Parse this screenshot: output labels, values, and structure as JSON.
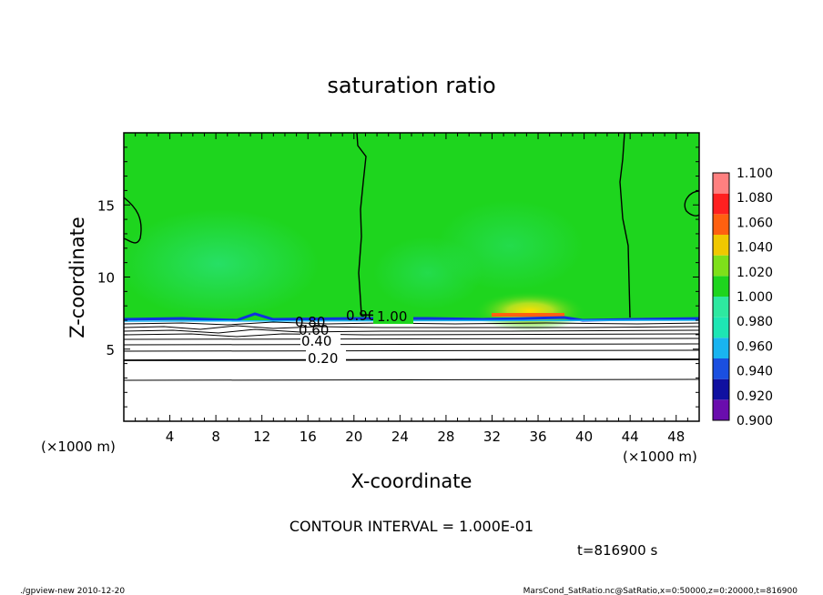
{
  "chart_data": {
    "type": "heatmap",
    "title": "saturation ratio",
    "xlabel": "X-coordinate",
    "ylabel": "Z-coordinate",
    "x_unit": "(×1000 m)",
    "z_unit": "(×1000 m)",
    "xlim": [
      0,
      50
    ],
    "ylim": [
      0,
      20
    ],
    "x_ticks": [
      4,
      8,
      12,
      16,
      20,
      24,
      28,
      32,
      36,
      40,
      44,
      48
    ],
    "y_ticks": [
      5,
      10,
      15
    ],
    "colorbar": {
      "levels": [
        "0.900",
        "0.920",
        "0.940",
        "0.960",
        "0.980",
        "1.000",
        "1.020",
        "1.040",
        "1.060",
        "1.080",
        "1.100"
      ],
      "colors": [
        "#6a0dad",
        "#1010a0",
        "#1a4fe0",
        "#19b4f0",
        "#1ee6b4",
        "#2ee8a0",
        "#1ed51e",
        "#7ee01a",
        "#f0c800",
        "#ff6010",
        "#ff2020",
        "#ff8080"
      ]
    },
    "contour_labels": [
      {
        "text": "0.20",
        "x": 16.5,
        "z": 4.3
      },
      {
        "text": "0.40",
        "x": 15.5,
        "z": 5.7
      },
      {
        "text": "0.60",
        "x": 15.0,
        "z": 6.3
      },
      {
        "text": "0.80",
        "x": 14.7,
        "z": 6.9
      },
      {
        "text": "0.90",
        "x": 18.5,
        "z": 7.3
      },
      {
        "text": "1.00",
        "x": 22.0,
        "z": 7.3
      }
    ],
    "contour_interval_text": "CONTOUR INTERVAL = 1.000E-01",
    "time_text": "t=816900 s"
  },
  "footer": {
    "left": "./gpview-new   2010-12-20",
    "right": "MarsCond_SatRatio.nc@SatRatio,x=0:50000,z=0:20000,t=816900"
  }
}
